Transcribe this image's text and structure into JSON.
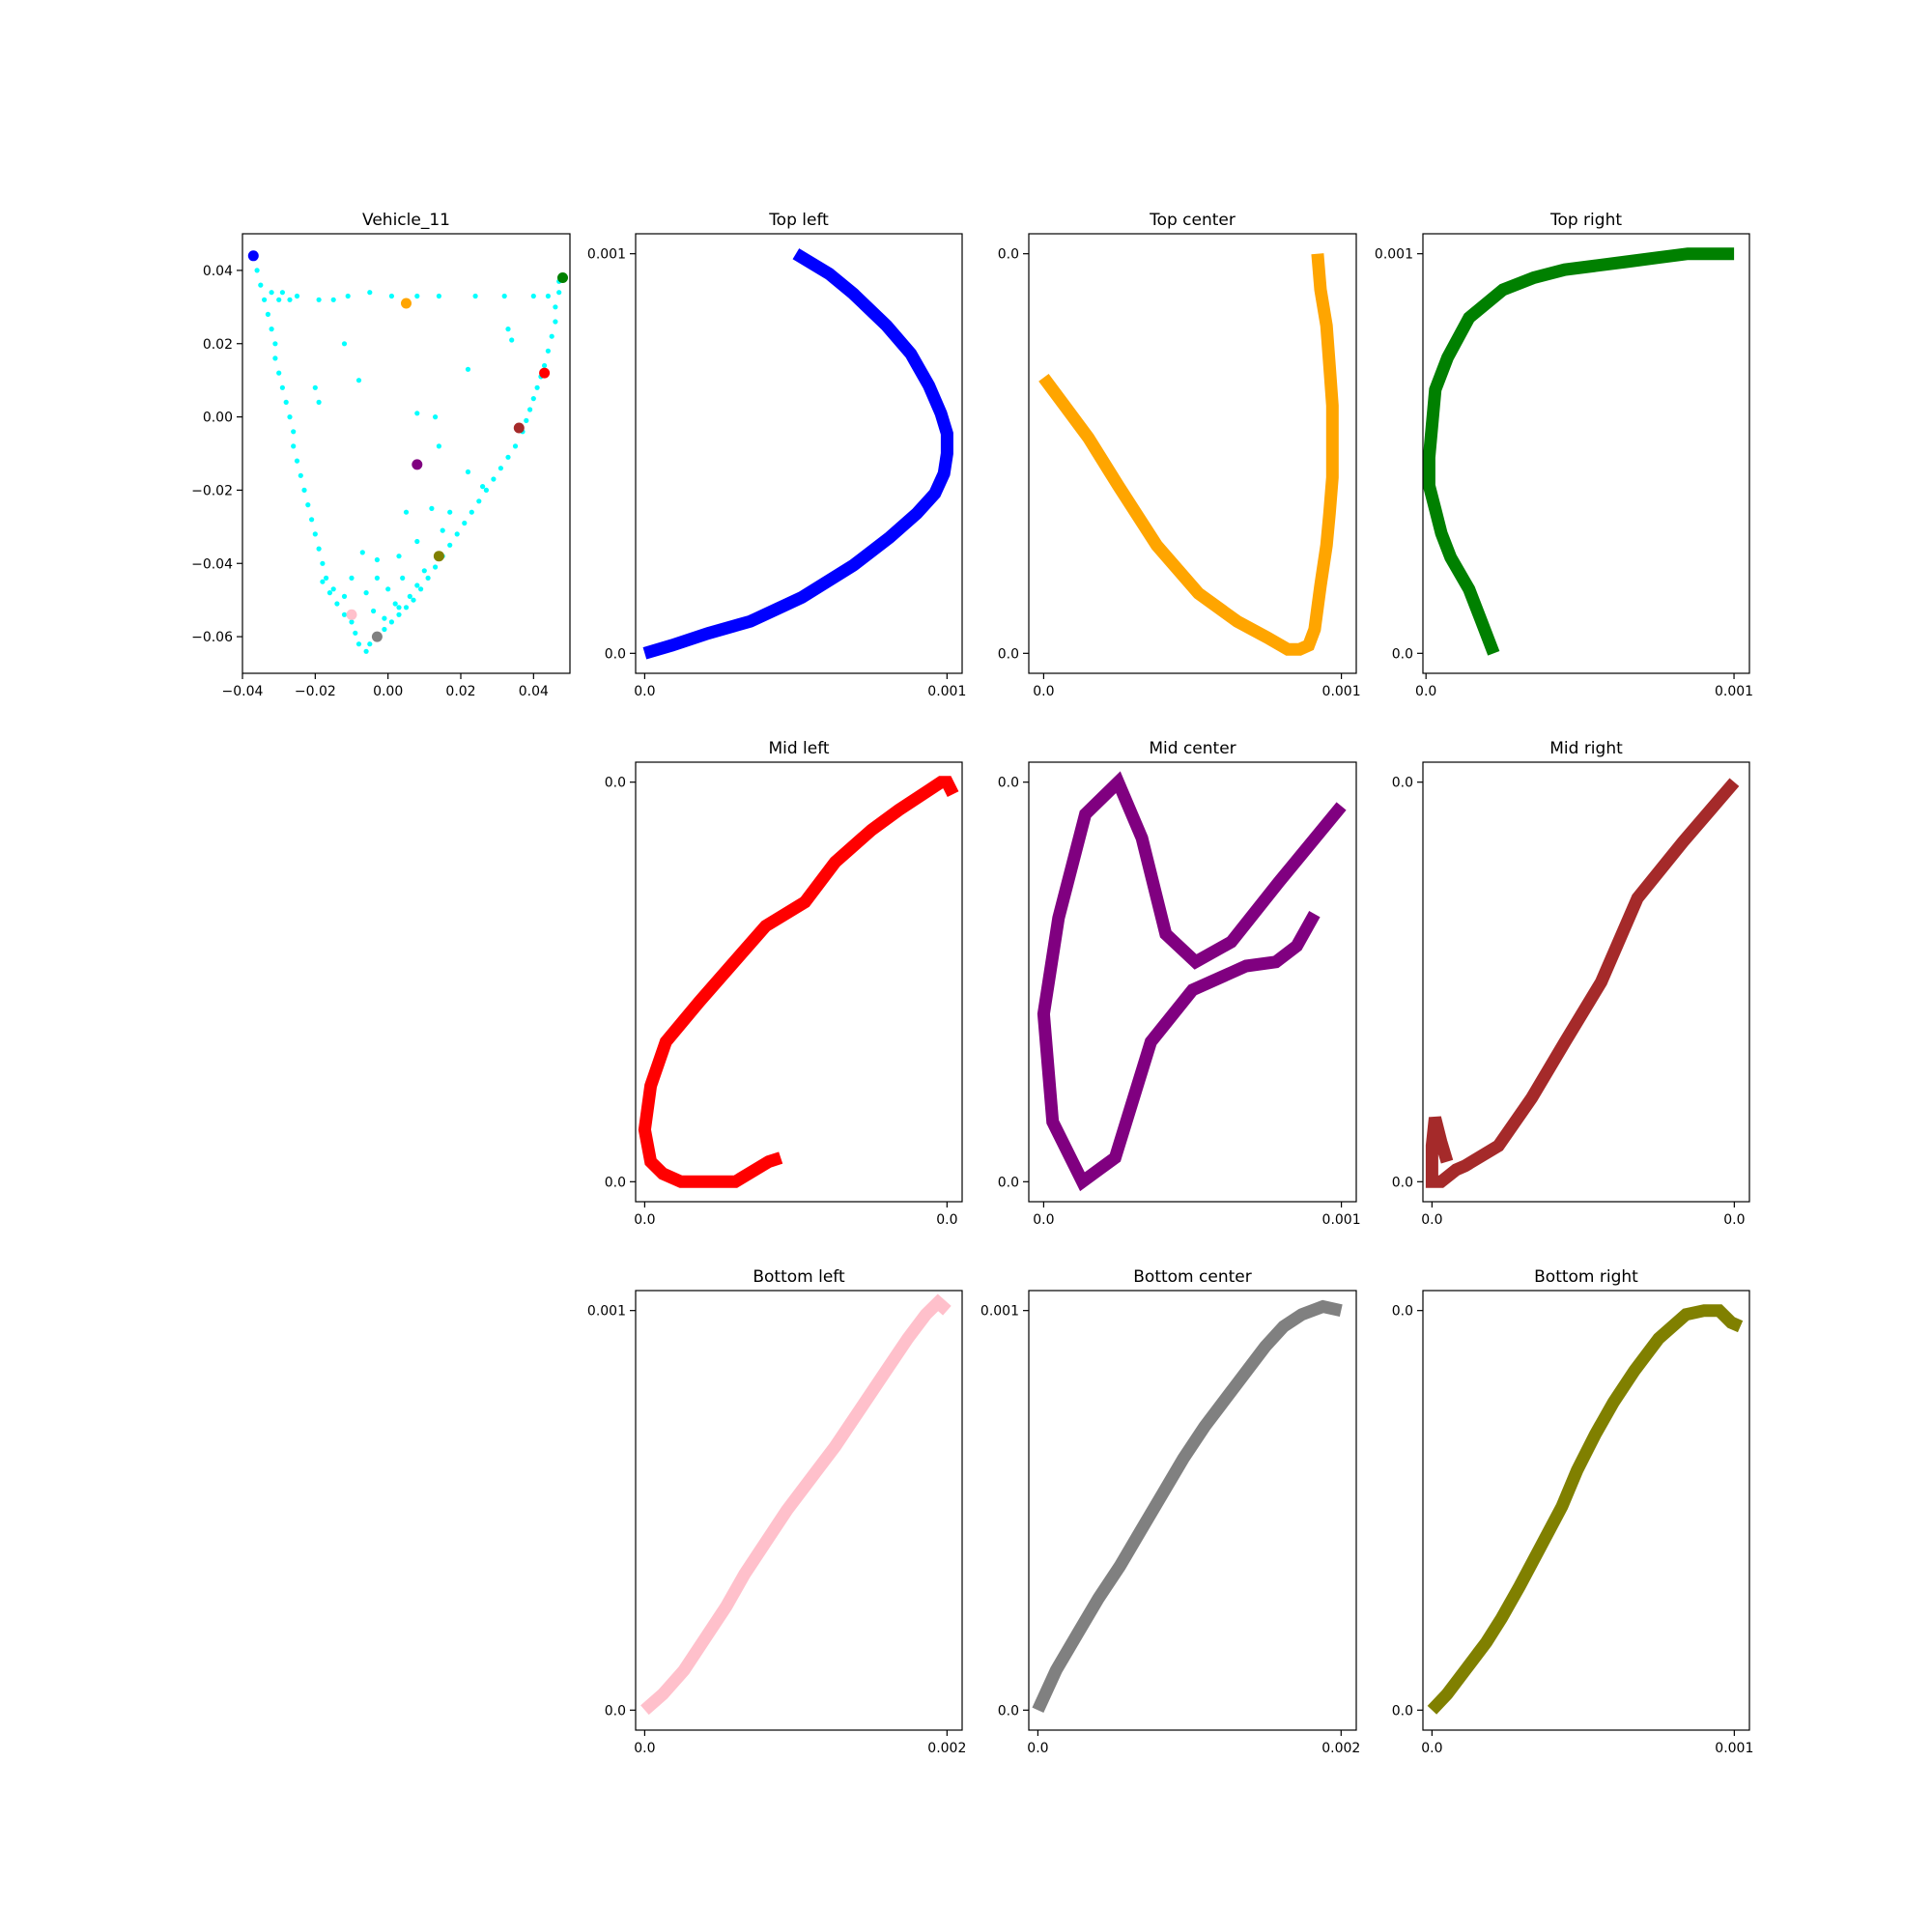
{
  "chart_data": [
    {
      "id": "vehicle",
      "type": "scatter",
      "title": "Vehicle_11",
      "xlim": [
        -0.04,
        0.05
      ],
      "ylim": [
        -0.07,
        0.05
      ],
      "xticks": [
        -0.04,
        -0.02,
        0.0,
        0.02,
        0.04
      ],
      "xtick_labels": [
        "−0.04",
        "−0.02",
        "0.00",
        "0.02",
        "0.04"
      ],
      "yticks": [
        -0.06,
        -0.04,
        -0.02,
        0.0,
        0.02,
        0.04
      ],
      "ytick_labels": [
        "−0.06",
        "−0.04",
        "−0.02",
        "0.00",
        "0.02",
        "0.04"
      ],
      "background_color": "#00ffff",
      "background_points": [
        [
          -0.037,
          0.044
        ],
        [
          -0.036,
          0.04
        ],
        [
          -0.035,
          0.036
        ],
        [
          -0.034,
          0.032
        ],
        [
          -0.033,
          0.028
        ],
        [
          -0.032,
          0.024
        ],
        [
          -0.031,
          0.02
        ],
        [
          -0.031,
          0.016
        ],
        [
          -0.03,
          0.012
        ],
        [
          -0.029,
          0.008
        ],
        [
          -0.028,
          0.004
        ],
        [
          -0.027,
          0.0
        ],
        [
          -0.026,
          -0.004
        ],
        [
          -0.026,
          -0.008
        ],
        [
          -0.025,
          -0.012
        ],
        [
          -0.024,
          -0.016
        ],
        [
          -0.023,
          -0.02
        ],
        [
          -0.022,
          -0.024
        ],
        [
          -0.021,
          -0.028
        ],
        [
          -0.02,
          -0.032
        ],
        [
          -0.019,
          -0.036
        ],
        [
          -0.018,
          -0.04
        ],
        [
          -0.017,
          -0.044
        ],
        [
          -0.016,
          -0.048
        ],
        [
          -0.014,
          -0.051
        ],
        [
          -0.012,
          -0.054
        ],
        [
          -0.01,
          -0.056
        ],
        [
          -0.009,
          -0.059
        ],
        [
          -0.008,
          -0.062
        ],
        [
          -0.006,
          -0.064
        ],
        [
          -0.005,
          -0.062
        ],
        [
          -0.003,
          -0.06
        ],
        [
          -0.001,
          -0.058
        ],
        [
          0.001,
          -0.056
        ],
        [
          0.003,
          -0.054
        ],
        [
          0.005,
          -0.052
        ],
        [
          0.007,
          -0.05
        ],
        [
          0.009,
          -0.047
        ],
        [
          0.011,
          -0.044
        ],
        [
          0.013,
          -0.041
        ],
        [
          0.015,
          -0.038
        ],
        [
          0.017,
          -0.035
        ],
        [
          0.019,
          -0.032
        ],
        [
          0.021,
          -0.029
        ],
        [
          0.023,
          -0.026
        ],
        [
          0.025,
          -0.023
        ],
        [
          0.027,
          -0.02
        ],
        [
          0.029,
          -0.017
        ],
        [
          0.031,
          -0.014
        ],
        [
          0.033,
          -0.011
        ],
        [
          0.035,
          -0.008
        ],
        [
          0.037,
          -0.004
        ],
        [
          0.038,
          -0.001
        ],
        [
          0.039,
          0.002
        ],
        [
          0.04,
          0.005
        ],
        [
          0.041,
          0.008
        ],
        [
          0.042,
          0.011
        ],
        [
          0.043,
          0.014
        ],
        [
          0.044,
          0.018
        ],
        [
          0.045,
          0.022
        ],
        [
          0.046,
          0.026
        ],
        [
          0.046,
          0.03
        ],
        [
          0.047,
          0.034
        ],
        [
          0.047,
          0.037
        ],
        [
          -0.032,
          0.034
        ],
        [
          -0.03,
          0.032
        ],
        [
          -0.029,
          0.034
        ],
        [
          -0.027,
          0.032
        ],
        [
          -0.025,
          0.033
        ],
        [
          -0.019,
          0.032
        ],
        [
          -0.015,
          0.032
        ],
        [
          -0.011,
          0.033
        ],
        [
          -0.005,
          0.034
        ],
        [
          0.001,
          0.033
        ],
        [
          0.008,
          0.033
        ],
        [
          0.014,
          0.033
        ],
        [
          0.024,
          0.033
        ],
        [
          0.032,
          0.033
        ],
        [
          0.04,
          0.033
        ],
        [
          0.044,
          0.033
        ],
        [
          -0.012,
          0.02
        ],
        [
          -0.008,
          0.01
        ],
        [
          -0.02,
          0.008
        ],
        [
          -0.019,
          0.004
        ],
        [
          0.022,
          0.013
        ],
        [
          0.033,
          0.024
        ],
        [
          0.034,
          0.021
        ],
        [
          0.008,
          0.001
        ],
        [
          0.013,
          0.0
        ],
        [
          0.014,
          -0.008
        ],
        [
          0.022,
          -0.015
        ],
        [
          0.026,
          -0.019
        ],
        [
          0.017,
          -0.026
        ],
        [
          0.012,
          -0.025
        ],
        [
          0.005,
          -0.026
        ],
        [
          0.008,
          -0.034
        ],
        [
          0.015,
          -0.031
        ],
        [
          -0.007,
          -0.037
        ],
        [
          -0.003,
          -0.039
        ],
        [
          0.003,
          -0.038
        ],
        [
          -0.01,
          -0.044
        ],
        [
          -0.003,
          -0.044
        ],
        [
          0.004,
          -0.044
        ],
        [
          0.01,
          -0.042
        ],
        [
          -0.006,
          -0.048
        ],
        [
          0.0,
          -0.047
        ],
        [
          0.008,
          -0.046
        ],
        [
          -0.012,
          -0.049
        ],
        [
          0.006,
          -0.049
        ],
        [
          0.002,
          -0.051
        ],
        [
          -0.004,
          -0.053
        ],
        [
          -0.001,
          -0.055
        ],
        [
          0.003,
          -0.052
        ],
        [
          -0.018,
          -0.045
        ],
        [
          -0.015,
          -0.047
        ]
      ],
      "highlight_points": [
        {
          "x": -0.037,
          "y": 0.044,
          "color": "#0000ff"
        },
        {
          "x": 0.005,
          "y": 0.031,
          "color": "#ffa500"
        },
        {
          "x": 0.048,
          "y": 0.038,
          "color": "#008000"
        },
        {
          "x": 0.043,
          "y": 0.012,
          "color": "#ff0000"
        },
        {
          "x": 0.036,
          "y": -0.003,
          "color": "#a52a2a"
        },
        {
          "x": 0.008,
          "y": -0.013,
          "color": "#800080"
        },
        {
          "x": 0.014,
          "y": -0.038,
          "color": "#808000"
        },
        {
          "x": -0.01,
          "y": -0.054,
          "color": "#ffc0cb"
        },
        {
          "x": -0.003,
          "y": -0.06,
          "color": "#808080"
        }
      ]
    },
    {
      "id": "top-left",
      "type": "line",
      "title": "Top left",
      "color": "#0000ff",
      "xlim": [
        -3e-05,
        0.00105
      ],
      "ylim": [
        -5e-05,
        0.00105
      ],
      "xticks": [
        0.0,
        0.001
      ],
      "xtick_labels": [
        "0.0",
        "0.001"
      ],
      "yticks": [
        0.0,
        0.001
      ],
      "ytick_labels": [
        "0.0",
        "0.001"
      ],
      "x": [
        0.0,
        9e-05,
        0.00021,
        0.00035,
        0.00052,
        0.00069,
        0.00081,
        0.0009,
        0.00096,
        0.00099,
        0.001,
        0.001,
        0.00098,
        0.00094,
        0.00088,
        0.0008,
        0.00069,
        0.00061,
        0.0005
      ],
      "y": [
        0.0,
        2e-05,
        5e-05,
        8e-05,
        0.00014,
        0.00022,
        0.00029,
        0.00035,
        0.0004,
        0.00045,
        0.0005,
        0.00055,
        0.0006,
        0.00067,
        0.00075,
        0.00082,
        0.0009,
        0.00095,
        0.001
      ]
    },
    {
      "id": "top-center",
      "type": "line",
      "title": "Top center",
      "color": "#ffa500",
      "xlim": [
        -5e-05,
        0.00105
      ],
      "ylim": [
        -5e-05,
        0.00105
      ],
      "xticks": [
        0.0,
        0.001
      ],
      "xtick_labels": [
        "0.0",
        "0.001"
      ],
      "yticks": [
        0.001
      ],
      "ytick_labels": [
        "0.0"
      ],
      "ytick_labels_bottom": [
        "0.0"
      ],
      "x": [
        0.0,
        7e-05,
        0.00015,
        0.00025,
        0.00038,
        0.00052,
        0.00065,
        0.00075,
        0.00082,
        0.00086,
        0.00089,
        0.00091,
        0.00093,
        0.00095,
        0.00096,
        0.00097,
        0.00097,
        0.00097,
        0.00096,
        0.00095,
        0.00093,
        0.00092
      ],
      "y": [
        0.00069,
        0.00062,
        0.00054,
        0.00042,
        0.00027,
        0.00015,
        8e-05,
        4e-05,
        1e-05,
        1e-05,
        2e-05,
        6e-05,
        0.00017,
        0.00027,
        0.00035,
        0.00044,
        0.00053,
        0.00062,
        0.00072,
        0.00082,
        0.00091,
        0.001
      ]
    },
    {
      "id": "top-right",
      "type": "line",
      "title": "Top right",
      "color": "#008000",
      "xlim": [
        -1e-05,
        0.00105
      ],
      "ylim": [
        -5e-05,
        0.00105
      ],
      "xticks": [
        0.0,
        0.001
      ],
      "xtick_labels": [
        "0.0",
        "0.001"
      ],
      "yticks": [
        0.0,
        0.001
      ],
      "ytick_labels": [
        "0.0",
        "0.001"
      ],
      "x": [
        0.00022,
        0.00018,
        0.00014,
        8e-05,
        5e-05,
        3e-05,
        1e-05,
        1e-05,
        3e-05,
        7e-05,
        0.00014,
        0.00025,
        0.00035,
        0.00045,
        0.00055,
        0.00065,
        0.00075,
        0.00085,
        0.00095,
        0.001
      ],
      "y": [
        0.0,
        8e-05,
        0.00016,
        0.00024,
        0.0003,
        0.00036,
        0.00042,
        0.00049,
        0.00066,
        0.00074,
        0.00084,
        0.00091,
        0.00094,
        0.00096,
        0.00097,
        0.00098,
        0.00099,
        0.001,
        0.001,
        0.001
      ]
    },
    {
      "id": "mid-left",
      "type": "line",
      "title": "Mid left",
      "color": "#ff0000",
      "xlim": [
        -3e-05,
        0.00105
      ],
      "ylim": [
        -5e-05,
        0.00105
      ],
      "xticks": [
        0.0,
        0.001
      ],
      "xtick_labels": [
        "0.0",
        "0.0"
      ],
      "yticks": [
        0.0,
        0.001
      ],
      "ytick_labels": [
        "0.0",
        "0.0"
      ],
      "x": [
        0.00045,
        0.00041,
        0.0003,
        0.00021,
        0.00012,
        6e-05,
        2e-05,
        0.0,
        2e-05,
        7e-05,
        0.00018,
        0.0004,
        0.00053,
        0.00063,
        0.00075,
        0.00084,
        0.00094,
        0.00098,
        0.001,
        0.00102
      ],
      "y": [
        6e-05,
        5e-05,
        0.0,
        0.0,
        0.0,
        2e-05,
        5e-05,
        0.00013,
        0.00024,
        0.00035,
        0.00045,
        0.00064,
        0.0007,
        0.0008,
        0.00088,
        0.00093,
        0.00098,
        0.001,
        0.001,
        0.00097
      ]
    },
    {
      "id": "mid-center",
      "type": "line",
      "title": "Mid center",
      "color": "#800080",
      "xlim": [
        -5e-05,
        0.00105
      ],
      "ylim": [
        -5e-05,
        0.00105
      ],
      "xticks": [
        0.0,
        0.001
      ],
      "xtick_labels": [
        "0.0",
        "0.001"
      ],
      "yticks": [
        0.0,
        0.001
      ],
      "ytick_labels": [
        "0.0",
        "0.0"
      ],
      "x": [
        0.00091,
        0.00085,
        0.00078,
        0.00068,
        0.0005,
        0.00036,
        0.00024,
        0.00013,
        3e-05,
        0.0,
        5e-05,
        0.00014,
        0.00025,
        0.00033,
        0.00041,
        0.00051,
        0.00063,
        0.00079,
        0.001
      ],
      "y": [
        0.00067,
        0.00059,
        0.00055,
        0.00054,
        0.00048,
        0.00035,
        6e-05,
        0.0,
        0.00015,
        0.00042,
        0.00066,
        0.00092,
        0.001,
        0.00086,
        0.00062,
        0.00055,
        0.0006,
        0.00075,
        0.00094
      ]
    },
    {
      "id": "mid-right",
      "type": "line",
      "title": "Mid right",
      "color": "#a52a2a",
      "xlim": [
        -3e-05,
        0.00105
      ],
      "ylim": [
        -5e-05,
        0.00105
      ],
      "xticks": [
        0.0,
        0.001
      ],
      "xtick_labels": [
        "0.0",
        "0.0"
      ],
      "yticks": [
        0.0,
        0.001
      ],
      "ytick_labels": [
        "0.0",
        "0.0"
      ],
      "x": [
        5e-05,
        3e-05,
        1e-05,
        0.0,
        0.0,
        3e-05,
        8e-05,
        0.00011,
        0.00022,
        0.00033,
        0.00044,
        0.00056,
        0.00068,
        0.00083,
        0.001
      ],
      "y": [
        5e-05,
        0.0001,
        0.00016,
        9e-05,
        0.0,
        0.0,
        3e-05,
        4e-05,
        9e-05,
        0.00021,
        0.00035,
        0.0005,
        0.00071,
        0.00085,
        0.001
      ]
    },
    {
      "id": "bottom-left",
      "type": "line",
      "title": "Bottom left",
      "color": "#ffc0cb",
      "xlim": [
        -6e-05,
        0.0021
      ],
      "ylim": [
        -5e-05,
        0.00105
      ],
      "xticks": [
        0.0,
        0.002
      ],
      "xtick_labels": [
        "0.0",
        "0.002"
      ],
      "yticks": [
        0.0,
        0.001
      ],
      "ytick_labels": [
        "0.0",
        "0.001"
      ],
      "x": [
        0.0,
        0.00012,
        0.00026,
        0.0004,
        0.00054,
        0.00066,
        0.0008,
        0.00094,
        0.0011,
        0.00126,
        0.00142,
        0.00158,
        0.00174,
        0.00186,
        0.00194,
        0.002
      ],
      "y": [
        0.0,
        4e-05,
        0.0001,
        0.00018,
        0.00026,
        0.00034,
        0.00042,
        0.0005,
        0.00058,
        0.00066,
        0.00075,
        0.00084,
        0.00093,
        0.00099,
        0.00102,
        0.001
      ]
    },
    {
      "id": "bottom-center",
      "type": "line",
      "title": "Bottom center",
      "color": "#808080",
      "xlim": [
        -6e-05,
        0.0021
      ],
      "ylim": [
        -5e-05,
        0.00105
      ],
      "xticks": [
        0.0,
        0.002
      ],
      "xtick_labels": [
        "0.0",
        "0.002"
      ],
      "yticks": [
        0.0,
        0.001
      ],
      "ytick_labels": [
        "0.0",
        "0.001"
      ],
      "x": [
        0.0,
        0.00012,
        0.00026,
        0.0004,
        0.00054,
        0.00068,
        0.00082,
        0.00096,
        0.0011,
        0.00124,
        0.00138,
        0.0015,
        0.00162,
        0.00174,
        0.00188,
        0.002
      ],
      "y": [
        0.0,
        0.0001,
        0.00019,
        0.00028,
        0.00036,
        0.00045,
        0.00054,
        0.00063,
        0.00071,
        0.00078,
        0.00085,
        0.00091,
        0.00096,
        0.00099,
        0.00101,
        0.001
      ]
    },
    {
      "id": "bottom-right",
      "type": "line",
      "title": "Bottom right",
      "color": "#808000",
      "xlim": [
        -3e-05,
        0.00105
      ],
      "ylim": [
        -5e-05,
        0.00105
      ],
      "xticks": [
        0.0,
        0.001
      ],
      "xtick_labels": [
        "0.0",
        "0.001"
      ],
      "yticks": [
        0.0,
        0.001
      ],
      "ytick_labels": [
        "0.0",
        "0.0"
      ],
      "x": [
        0.0,
        5e-05,
        0.00011,
        0.00018,
        0.00023,
        0.00029,
        0.00036,
        0.00043,
        0.00048,
        0.00054,
        0.0006,
        0.00067,
        0.00075,
        0.00084,
        0.0009,
        0.00095,
        0.00099,
        0.00102
      ],
      "y": [
        0.0,
        4e-05,
        0.0001,
        0.00017,
        0.00023,
        0.00031,
        0.00041,
        0.00051,
        0.0006,
        0.00069,
        0.00077,
        0.00085,
        0.00093,
        0.00099,
        0.001,
        0.001,
        0.00097,
        0.00096
      ]
    }
  ]
}
